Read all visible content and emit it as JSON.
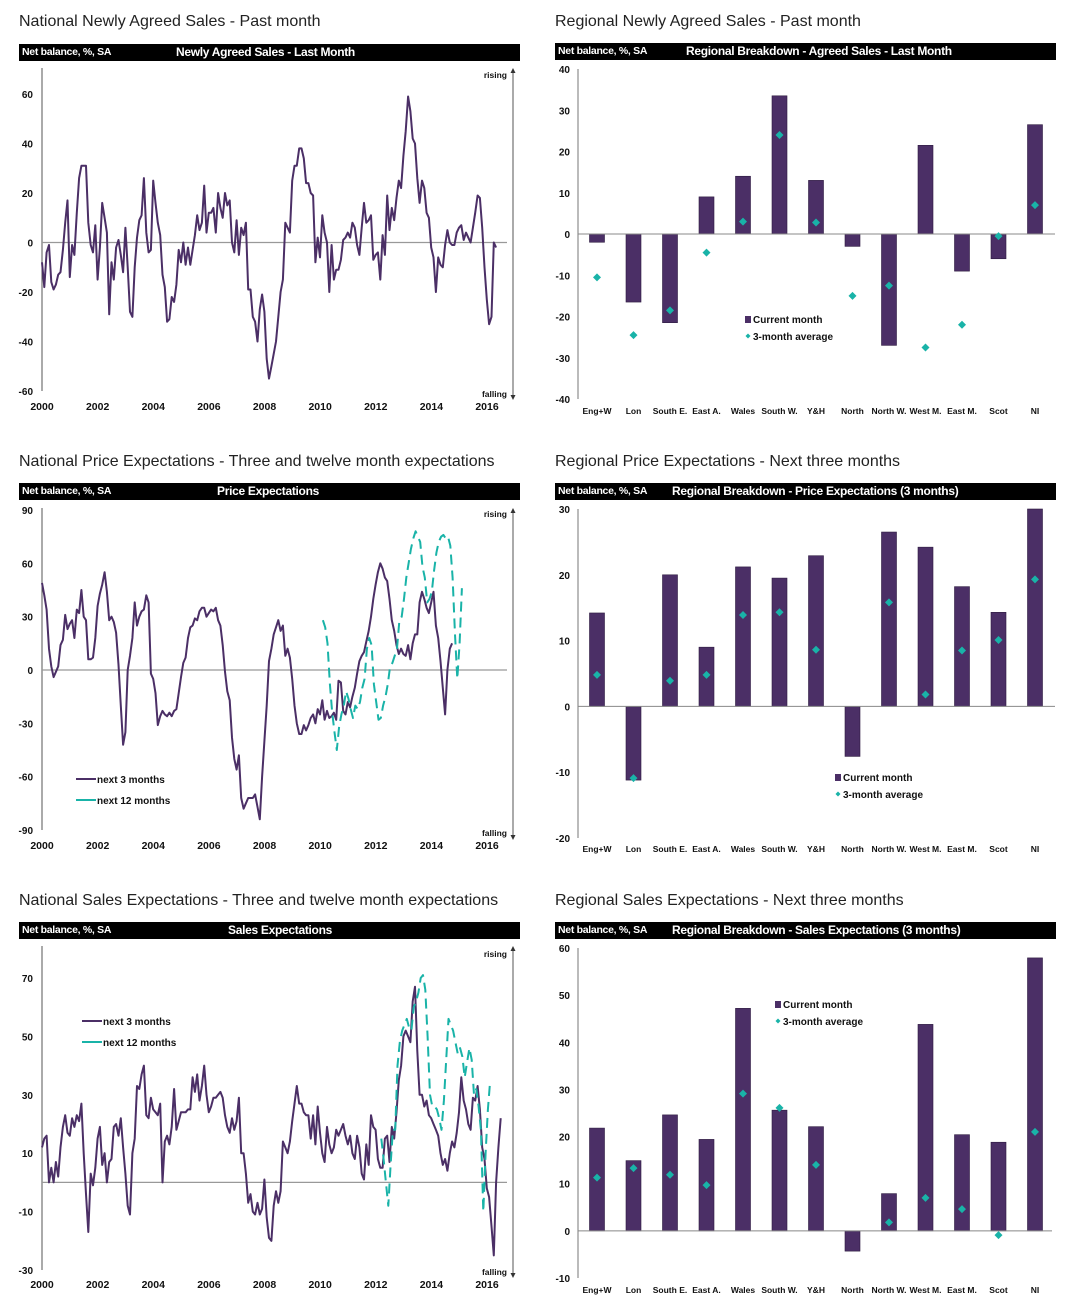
{
  "colors": {
    "purple": "#4b2f66",
    "teal": "#19b3a8",
    "axis": "#888888",
    "zero": "#999999"
  },
  "chart_data": [
    {
      "id": "national-agreed-sales",
      "type": "line",
      "panel_title": "National Newly Agreed Sales - Past month",
      "unit_label": "Net balance, %, SA",
      "title": "Newly Agreed Sales - Last Month",
      "xlabel": "",
      "ylabel": "Net balance, %, SA",
      "xlim": [
        2000,
        2016.75
      ],
      "ylim": [
        -60,
        60
      ],
      "yticks": [
        60,
        40,
        20,
        0,
        -20,
        -40,
        -60
      ],
      "xticks": [
        2000,
        2002,
        2004,
        2006,
        2008,
        2010,
        2012,
        2014,
        2016
      ],
      "annotations": {
        "top": "rising",
        "bottom": "falling"
      },
      "series": [
        {
          "name": "Newly agreed sales",
          "color": "purple",
          "dashed": false,
          "x_start": 2000,
          "x_step": 0.0833,
          "values": [
            -8,
            -18,
            -4,
            -1,
            -16,
            -19,
            -17,
            -13,
            -12,
            -3,
            8,
            17,
            -14,
            -1,
            -5,
            12,
            26,
            31,
            31,
            31,
            8,
            -1,
            -4,
            7,
            -15,
            -2,
            16,
            10,
            4,
            -29,
            -8,
            -15,
            -2,
            1,
            -5,
            -12,
            6,
            -10,
            -28,
            -30,
            -10,
            2,
            9,
            11,
            26,
            4,
            -4,
            -3,
            25,
            16,
            8,
            3,
            -13,
            -18,
            -32,
            -31,
            -22,
            -24,
            -17,
            -3,
            -8,
            0,
            -9,
            -2,
            -9,
            -3,
            3,
            11,
            5,
            8,
            23,
            4,
            12,
            12,
            14,
            4,
            20,
            14,
            10,
            20,
            15,
            17,
            0,
            -4,
            9,
            -5,
            6,
            3,
            8,
            -19,
            -19,
            -30,
            -32,
            -40,
            -27,
            -21,
            -28,
            -47,
            -55,
            -50,
            -45,
            -40,
            -30,
            -20,
            -15,
            8,
            6,
            4,
            25,
            31,
            31,
            38,
            38,
            34,
            24,
            24,
            20,
            19,
            -8,
            2,
            -6,
            11,
            4,
            0,
            -20,
            -1,
            -15,
            -11,
            -11,
            -7,
            1,
            2,
            4,
            2,
            8,
            6,
            -1,
            -5,
            6,
            16,
            8,
            9,
            11,
            -7,
            -5,
            -4,
            -15,
            3,
            -5,
            19,
            5,
            14,
            9,
            18,
            25,
            22,
            35,
            45,
            59,
            53,
            42,
            40,
            26,
            16,
            25,
            22,
            12,
            10,
            -2,
            -6,
            -20,
            -6,
            -9,
            -10,
            -1,
            5,
            0,
            -1,
            -1,
            4,
            6,
            7,
            1,
            4,
            2,
            0,
            6,
            12,
            19,
            18,
            6,
            -10,
            -23,
            -33,
            -30,
            0,
            -2
          ]
        }
      ]
    },
    {
      "id": "regional-agreed-sales",
      "type": "bar",
      "panel_title": "Regional Newly Agreed Sales - Past month",
      "unit_label": "Net balance, %, SA",
      "title": "Regional Breakdown - Agreed Sales - Last Month",
      "ylim": [
        -40,
        40
      ],
      "yticks": [
        40,
        30,
        20,
        10,
        0,
        -10,
        -20,
        -30,
        -40
      ],
      "categories": [
        "Eng+W",
        "Lon",
        "South E.",
        "East A.",
        "Wales",
        "South W.",
        "Y&H",
        "North",
        "North W.",
        "West M.",
        "East M.",
        "Scot",
        "NI"
      ],
      "series": [
        {
          "name": "Current month",
          "kind": "bar",
          "color": "purple",
          "values": [
            -2,
            -16.5,
            -21.5,
            9,
            14,
            33.5,
            13,
            -3,
            -27,
            21.5,
            -9,
            -6,
            26.5
          ]
        },
        {
          "name": "3-month average",
          "kind": "marker",
          "color": "teal",
          "values": [
            -10.5,
            -24.5,
            -18.5,
            -4.5,
            3,
            24,
            2.8,
            -15,
            -12.5,
            -27.5,
            -22,
            -0.5,
            7
          ]
        }
      ],
      "legend": {
        "current": "Current month",
        "average": "3-month average",
        "position": "lower-center"
      }
    },
    {
      "id": "national-price-expectations",
      "type": "line",
      "panel_title": "National Price Expectations - Three and twelve month expectations",
      "unit_label": "Net balance, %, SA",
      "title": "Price Expectations",
      "xlim": [
        2000,
        2016.75
      ],
      "ylim": [
        -90,
        90
      ],
      "yticks": [
        90,
        60,
        30,
        0,
        -30,
        -60,
        -90
      ],
      "xticks": [
        2000,
        2002,
        2004,
        2006,
        2008,
        2010,
        2012,
        2014,
        2016
      ],
      "annotations": {
        "top": "rising",
        "bottom": "falling"
      },
      "legend": {
        "items": [
          "next 3 months",
          "next 12 months"
        ],
        "position": "lower-left"
      },
      "series": [
        {
          "name": "next 3 months",
          "color": "purple",
          "dashed": false,
          "x_start": 2000,
          "x_step": 0.0833,
          "values": [
            49,
            42,
            34,
            12,
            2,
            -4,
            -1,
            2,
            14,
            17,
            31,
            23,
            26,
            28,
            18,
            34,
            32,
            45,
            30,
            28,
            6,
            6,
            7,
            18,
            36,
            43,
            48,
            55,
            44,
            28,
            30,
            27,
            21,
            3,
            -20,
            -42,
            -35,
            0,
            8,
            18,
            38,
            25,
            30,
            33,
            34,
            42,
            38,
            -2,
            -5,
            -13,
            -31,
            -26,
            -23,
            -25,
            -26,
            -24,
            -26,
            -23,
            -22,
            -13,
            -4,
            4,
            7,
            18,
            24,
            25,
            29,
            28,
            33,
            35,
            35,
            30,
            32,
            34,
            33,
            35,
            28,
            25,
            14,
            -1,
            -12,
            -17,
            -38,
            -50,
            -56,
            -48,
            -72,
            -78,
            -75,
            -72,
            -72,
            -72,
            -70,
            -77,
            -84,
            -60,
            -40,
            -20,
            5,
            12,
            20,
            24,
            28,
            22,
            25,
            8,
            12,
            7,
            -5,
            -20,
            -30,
            -36,
            -36,
            -31,
            -34,
            -31,
            -27,
            -25,
            -30,
            -22,
            -25,
            -17,
            -28,
            -23,
            -27,
            -26,
            -24,
            -28,
            -6,
            -7,
            -23,
            -25,
            -18,
            -21,
            -15,
            -10,
            -2,
            5,
            8,
            10,
            16,
            22,
            30,
            40,
            48,
            55,
            60,
            57,
            52,
            50,
            40,
            28,
            22,
            14,
            9,
            12,
            9,
            8,
            14,
            6,
            15,
            20,
            20,
            38,
            44,
            40,
            35,
            32,
            38,
            44,
            25,
            18,
            5,
            -10,
            -25,
            0,
            12,
            15
          ]
        },
        {
          "name": "next 12 months",
          "color": "teal",
          "dashed": true,
          "x_start": 2010.1,
          "x_step": 0.0833,
          "values": [
            28,
            24,
            15,
            -8,
            -24,
            -35,
            -45,
            -32,
            -25,
            -20,
            -12,
            -16,
            -22,
            -27,
            -20,
            -22,
            -18,
            -10,
            -5,
            12,
            18,
            14,
            -8,
            -18,
            -28,
            -27,
            -20,
            -15,
            -8,
            2,
            4,
            8,
            12,
            28,
            30,
            40,
            52,
            60,
            68,
            74,
            78,
            75,
            72,
            58,
            52,
            38,
            40,
            44,
            56,
            66,
            72,
            75,
            76,
            74,
            75,
            70,
            52,
            20,
            -5,
            15,
            46
          ]
        }
      ]
    },
    {
      "id": "regional-price-expectations",
      "type": "bar",
      "panel_title": "Regional Price Expectations - Next three months",
      "unit_label": "Net balance, %, SA",
      "title": "Regional Breakdown - Price Expectations (3 months)",
      "ylim": [
        -20,
        30
      ],
      "yticks": [
        30,
        20,
        10,
        0,
        -10,
        -20
      ],
      "categories": [
        "Eng+W",
        "Lon",
        "South E.",
        "East A.",
        "Wales",
        "South W.",
        "Y&H",
        "North",
        "North W.",
        "West M.",
        "East M.",
        "Scot",
        "NI"
      ],
      "series": [
        {
          "name": "Current month",
          "kind": "bar",
          "color": "purple",
          "values": [
            14.2,
            -11.2,
            20,
            9,
            21.2,
            19.5,
            22.9,
            -7.6,
            26.5,
            24.2,
            18.2,
            14.3,
            30
          ]
        },
        {
          "name": "3-month average",
          "kind": "marker",
          "color": "teal",
          "values": [
            4.8,
            -10.9,
            3.9,
            4.8,
            13.9,
            14.3,
            8.6,
            null,
            15.8,
            1.8,
            8.5,
            10.1,
            19.3
          ]
        }
      ],
      "legend": {
        "current": "Current month",
        "average": "3-month average",
        "position": "lower-right"
      }
    },
    {
      "id": "national-sales-expectations",
      "type": "line",
      "panel_title": "National Sales Expectations - Three and twelve month expectations",
      "unit_label": "Net balance, %, SA",
      "title": "Sales Expectations",
      "xlim": [
        2000,
        2016.75
      ],
      "ylim": [
        -30,
        80
      ],
      "yticks": [
        70,
        50,
        30,
        10,
        -10,
        -30
      ],
      "xticks": [
        2000,
        2002,
        2004,
        2006,
        2008,
        2010,
        2012,
        2014,
        2016
      ],
      "annotations": {
        "top": "rising",
        "bottom": "falling"
      },
      "legend": {
        "items": [
          "next 3 months",
          "next 12 months"
        ],
        "position": "upper-left"
      },
      "series": [
        {
          "name": "next 3 months",
          "color": "purple",
          "dashed": false,
          "x_start": 2000,
          "x_step": 0.0833,
          "values": [
            12,
            15,
            16,
            0,
            5,
            0,
            7,
            2,
            12,
            19,
            23,
            17,
            16,
            22,
            19,
            23,
            21,
            27,
            10,
            -4,
            -17,
            3,
            -1,
            5,
            15,
            19,
            6,
            10,
            0,
            7,
            8,
            19,
            20,
            16,
            22,
            12,
            3,
            -8,
            -11,
            10,
            15,
            33,
            32,
            37,
            40,
            23,
            22,
            29,
            25,
            24,
            23,
            27,
            0,
            14,
            16,
            13,
            19,
            32,
            18,
            21,
            24,
            24,
            24,
            25,
            25,
            36,
            31,
            37,
            28,
            33,
            40,
            30,
            24,
            26,
            29,
            29,
            30,
            31,
            29,
            23,
            19,
            17,
            22,
            18,
            21,
            29,
            10,
            10,
            3,
            -7,
            -4,
            -10,
            -11,
            -7,
            -11,
            -9,
            1,
            -12,
            -19,
            -20,
            -8,
            -3,
            -7,
            -3,
            14,
            12,
            10,
            14,
            21,
            27,
            33,
            27,
            27,
            24,
            23,
            23,
            15,
            23,
            13,
            26,
            17,
            10,
            7,
            19,
            13,
            10,
            12,
            18,
            16,
            18,
            20,
            16,
            13,
            16,
            10,
            8,
            16,
            12,
            3,
            1,
            13,
            6,
            23,
            19,
            18,
            8,
            5,
            5,
            15,
            16,
            7,
            19,
            15,
            24,
            35,
            40,
            50,
            52,
            50,
            48,
            62,
            67,
            45,
            30,
            30,
            26,
            28,
            23,
            22,
            20,
            18,
            16,
            10,
            6,
            8,
            4,
            10,
            14,
            12,
            17,
            24,
            36,
            28,
            25,
            20,
            18,
            29,
            28,
            33,
            25,
            12,
            8,
            -2,
            -5,
            -15,
            -25,
            0,
            12,
            22
          ]
        },
        {
          "name": "next 12 months",
          "color": "teal",
          "dashed": true,
          "x_start": 2012.2,
          "x_step": 0.0833,
          "values": [
            15,
            8,
            0,
            -8,
            6,
            18,
            18,
            40,
            48,
            52,
            54,
            56,
            53,
            52,
            60,
            62,
            65,
            70,
            71,
            66,
            50,
            30,
            26,
            26,
            25,
            22,
            18,
            28,
            42,
            56,
            54,
            52,
            48,
            44,
            46,
            43,
            36,
            41,
            46,
            42,
            30,
            32,
            26,
            18,
            -10,
            10,
            25,
            35
          ]
        }
      ]
    },
    {
      "id": "regional-sales-expectations",
      "type": "bar",
      "panel_title": "Regional Sales Expectations - Next three months",
      "unit_label": "Net balance, %, SA",
      "title": "Regional Breakdown - Sales Expectations (3 months)",
      "ylim": [
        -10,
        60
      ],
      "yticks": [
        60,
        50,
        40,
        30,
        20,
        10,
        0,
        -10
      ],
      "categories": [
        "Eng+W",
        "Lon",
        "South E.",
        "East A.",
        "Wales",
        "South W.",
        "Y&H",
        "North",
        "North W.",
        "West M.",
        "East M.",
        "Scot",
        "NI"
      ],
      "series": [
        {
          "name": "Current month",
          "kind": "bar",
          "color": "purple",
          "values": [
            21.8,
            14.9,
            24.6,
            19.4,
            47.2,
            25.6,
            22.1,
            -4.3,
            7.9,
            43.8,
            20.4,
            18.8,
            57.9
          ]
        },
        {
          "name": "3-month average",
          "kind": "marker",
          "color": "teal",
          "values": [
            11.3,
            13.3,
            11.9,
            9.7,
            29.1,
            26.1,
            14.0,
            null,
            1.8,
            7.0,
            4.6,
            -0.9,
            21.0
          ]
        }
      ],
      "legend": {
        "current": "Current month",
        "average": "3-month average",
        "position": "upper-center"
      }
    }
  ]
}
